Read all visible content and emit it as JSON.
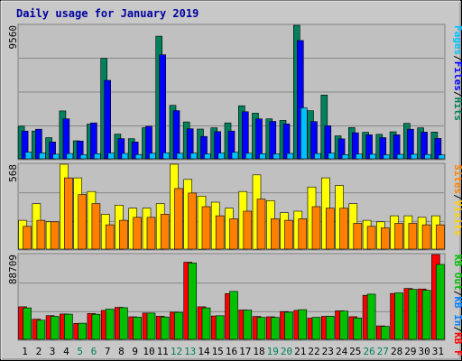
{
  "chart_data": [
    {
      "type": "bar",
      "title": "Daily usage for January 2019",
      "categories": [
        "1",
        "2",
        "3",
        "4",
        "5",
        "6",
        "7",
        "8",
        "9",
        "10",
        "11",
        "12",
        "13",
        "14",
        "15",
        "16",
        "17",
        "18",
        "19",
        "20",
        "21",
        "22",
        "23",
        "24",
        "25",
        "26",
        "27",
        "28",
        "29",
        "30",
        "31"
      ],
      "weekend_days": [
        "5",
        "6",
        "12",
        "13",
        "19",
        "20",
        "26",
        "27"
      ],
      "ymax_label": "9560",
      "legend": {
        "hits": "Hits",
        "files": "Files",
        "pages": "Pages",
        "sep": "/"
      },
      "colors": {
        "hits": "#00805c",
        "files": "#0000ff",
        "pages": "#00c0ff",
        "legend_hits": "#00805c",
        "legend_files": "#0000ff",
        "legend_pages": "#00c0ff"
      },
      "series": [
        {
          "key": "hits",
          "name": "Hits",
          "values": [
            2340,
            1990,
            1520,
            3430,
            1290,
            2490,
            7190,
            1770,
            1440,
            2230,
            8780,
            3830,
            2640,
            2130,
            2220,
            2570,
            3800,
            3270,
            2860,
            2750,
            9560,
            3440,
            4570,
            1650,
            2240,
            1900,
            1760,
            1940,
            2540,
            2220,
            1920
          ]
        },
        {
          "key": "files",
          "name": "Files",
          "values": [
            1990,
            2120,
            1210,
            2860,
            1270,
            2570,
            5620,
            1450,
            1210,
            2330,
            7450,
            3450,
            2150,
            1600,
            1950,
            1990,
            3370,
            2860,
            2680,
            2500,
            8470,
            2670,
            2370,
            1430,
            1870,
            1720,
            1520,
            1720,
            2120,
            1910,
            1460
          ]
        },
        {
          "key": "pages",
          "name": "Pages",
          "values": [
            480,
            420,
            330,
            380,
            300,
            370,
            420,
            390,
            310,
            400,
            430,
            400,
            410,
            350,
            420,
            470,
            400,
            370,
            350,
            390,
            3650,
            380,
            410,
            300,
            340,
            330,
            290,
            320,
            330,
            310,
            280
          ]
        }
      ]
    },
    {
      "type": "bar",
      "categories": [
        "1",
        "2",
        "3",
        "4",
        "5",
        "6",
        "7",
        "8",
        "9",
        "10",
        "11",
        "12",
        "13",
        "14",
        "15",
        "16",
        "17",
        "18",
        "19",
        "20",
        "21",
        "22",
        "23",
        "24",
        "25",
        "26",
        "27",
        "28",
        "29",
        "30",
        "31"
      ],
      "ymax_label": "568",
      "legend": {
        "visits": "Visits",
        "sites": "Sites",
        "sep": "/"
      },
      "colors": {
        "visits": "#ffff00",
        "sites": "#ff8000",
        "legend_visits": "#ffd000",
        "legend_sites": "#ff8000"
      },
      "series": [
        {
          "key": "visits",
          "name": "Visits",
          "values": [
            190,
            300,
            180,
            560,
            470,
            380,
            230,
            290,
            270,
            270,
            300,
            560,
            460,
            350,
            310,
            270,
            380,
            490,
            320,
            240,
            250,
            410,
            470,
            420,
            300,
            190,
            180,
            220,
            220,
            210,
            220
          ]
        },
        {
          "key": "sites",
          "name": "Sites",
          "values": [
            150,
            190,
            180,
            470,
            360,
            300,
            160,
            190,
            210,
            210,
            230,
            400,
            370,
            280,
            220,
            200,
            250,
            330,
            200,
            190,
            200,
            280,
            270,
            270,
            170,
            150,
            140,
            170,
            170,
            160,
            160
          ]
        }
      ]
    },
    {
      "type": "bar",
      "categories": [
        "1",
        "2",
        "3",
        "4",
        "5",
        "6",
        "7",
        "8",
        "9",
        "10",
        "11",
        "12",
        "13",
        "14",
        "15",
        "16",
        "17",
        "18",
        "19",
        "20",
        "21",
        "22",
        "23",
        "24",
        "25",
        "26",
        "27",
        "28",
        "29",
        "30",
        "31"
      ],
      "ymax_label": "88709",
      "legend": {
        "kbf": "KB F",
        "kbin": "KB In",
        "kbout": "KB Out",
        "sep": "/"
      },
      "colors": {
        "kbf": "#ff0000",
        "kbin": "#0080ff",
        "kbout": "#00c000",
        "legend_kbf": "#ff0000",
        "legend_kbin": "#0080ff",
        "legend_kbout": "#00c000"
      },
      "series": [
        {
          "key": "kbf",
          "name": "KB F",
          "values": [
            31500,
            19500,
            23000,
            24500,
            15500,
            25000,
            28000,
            31000,
            21800,
            25500,
            22400,
            26300,
            74700,
            31500,
            22600,
            44300,
            28400,
            22200,
            21800,
            26900,
            28000,
            20500,
            22300,
            27600,
            21900,
            42600,
            13000,
            44400,
            49300,
            48700,
            82100
          ]
        },
        {
          "key": "kbout",
          "name": "KB Out",
          "values": [
            30500,
            18500,
            22300,
            24400,
            15600,
            24300,
            29300,
            30700,
            21500,
            25400,
            21700,
            26100,
            73900,
            30500,
            22900,
            46400,
            28300,
            21300,
            21200,
            26300,
            28700,
            21300,
            22400,
            27300,
            20700,
            43800,
            12600,
            45000,
            48400,
            47400,
            72500
          ]
        }
      ]
    }
  ],
  "x_ticks": [
    "1",
    "2",
    "3",
    "4",
    "5",
    "6",
    "7",
    "8",
    "9",
    "10",
    "11",
    "12",
    "13",
    "14",
    "15",
    "16",
    "17",
    "18",
    "19",
    "20",
    "21",
    "22",
    "23",
    "24",
    "25",
    "26",
    "27",
    "28",
    "29",
    "30",
    "31"
  ],
  "x_tick_colors": {
    "weekday": "#000000",
    "weekend": "#00805c"
  }
}
